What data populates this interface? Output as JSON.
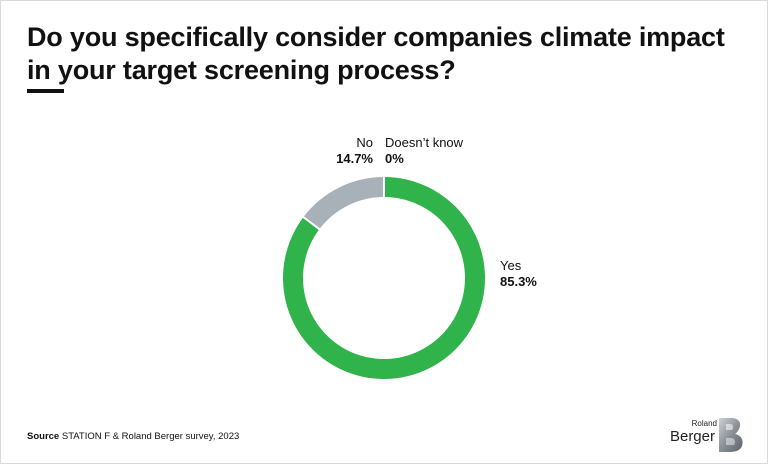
{
  "header": {
    "title": "Do you specifically consider companies climate impact in your target screening process?"
  },
  "chart_data": {
    "type": "pie",
    "categories": [
      "Yes",
      "No",
      "Doesn’t know"
    ],
    "values": [
      85.3,
      14.7,
      0
    ],
    "value_labels": [
      "85.3%",
      "14.7%",
      "0%"
    ],
    "colors": [
      "#2fb34a",
      "#a8b0b8",
      "#ffffff"
    ],
    "donut": true,
    "legend": "none"
  },
  "footer": {
    "source_label": "Source",
    "source_text": "STATION F & Roland Berger survey, 2023",
    "logo_top": "Roland",
    "logo_bottom": "Berger"
  }
}
